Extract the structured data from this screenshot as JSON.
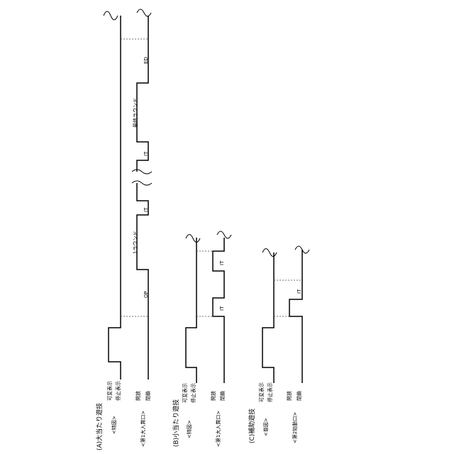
{
  "panels": {
    "a": {
      "title": "(A)大当たり遊技",
      "sig_variable": "可変表示",
      "sig_stop": "停止表示",
      "sig_symbol": "<特図>",
      "sig_open": "開放",
      "sig_closed": "閉鎖",
      "sig_entrance": "<第1大入賞口>",
      "op": "OP",
      "round_first": "1ラウンド",
      "it1": "IT",
      "it2": "IT",
      "round_last": "最終ラウンド",
      "ed": "ED"
    },
    "b": {
      "title": "(B)小当たり遊技",
      "sig_variable": "可変表示",
      "sig_stop": "停止表示",
      "sig_symbol": "<特図>",
      "sig_open": "開放",
      "sig_closed": "閉鎖",
      "sig_entrance": "<第1大入賞口>",
      "it1": "IT",
      "it2": "IT"
    },
    "c": {
      "title": "(C)補助遊技",
      "sig_variable": "可変表示",
      "sig_stop": "停止表示",
      "sig_symbol": "<普図>",
      "sig_open": "開放",
      "sig_closed": "閉鎖",
      "sig_entrance": "<第2始動口>",
      "it1": "IT"
    }
  }
}
